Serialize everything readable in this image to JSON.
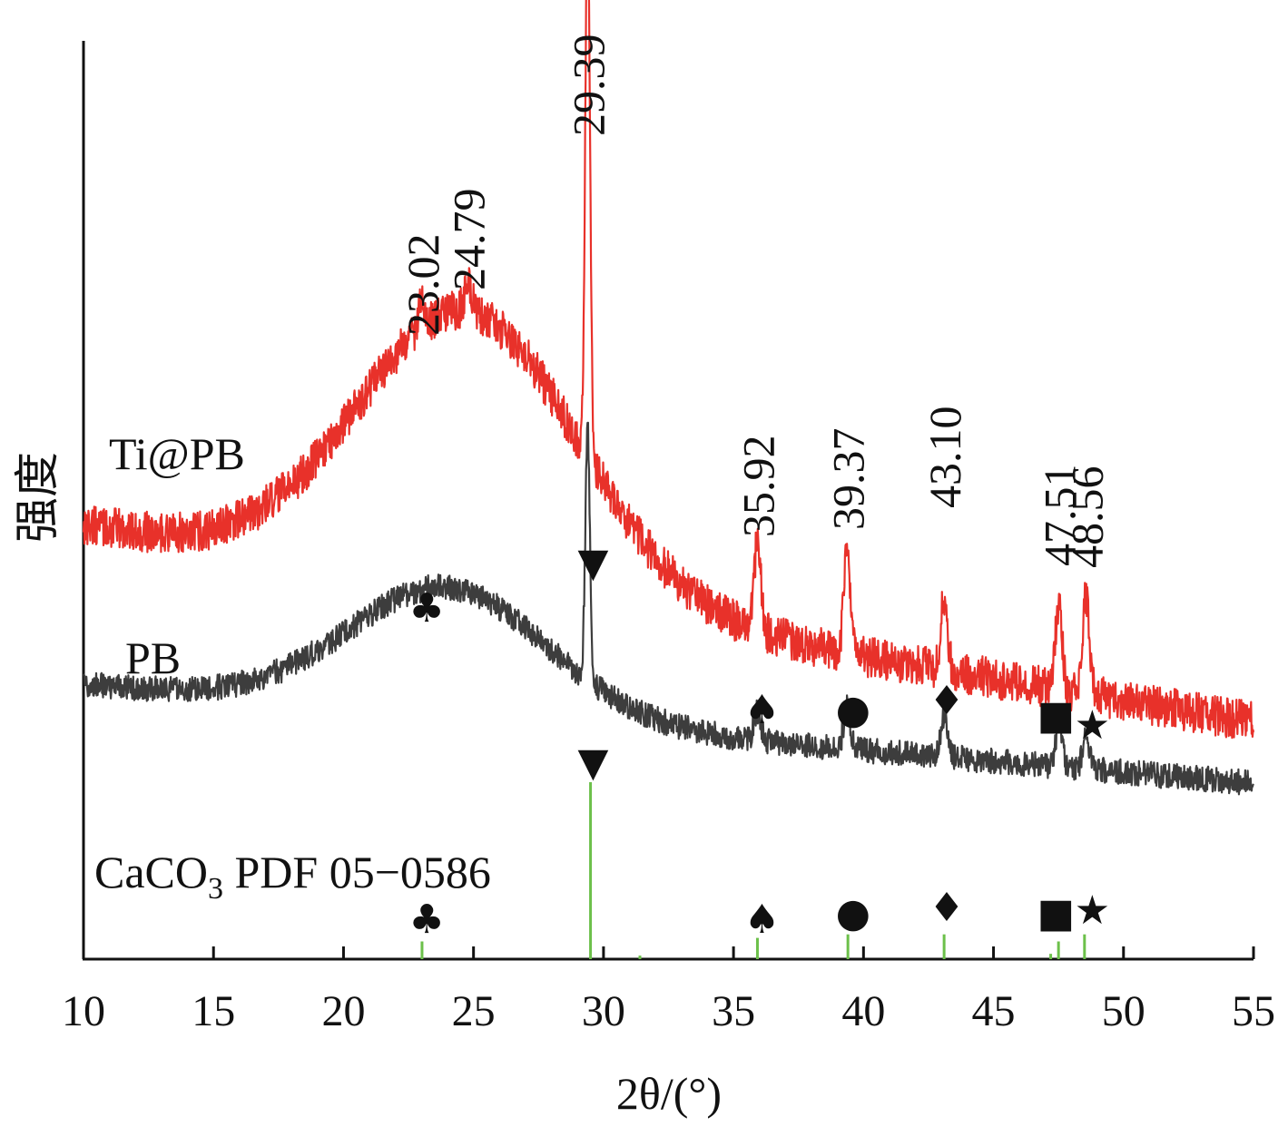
{
  "chart_data": {
    "type": "line",
    "title": "",
    "xlabel": "2θ/(°)",
    "ylabel": "强度",
    "xlim": [
      10,
      55
    ],
    "x_ticks": [
      "10",
      "15",
      "20",
      "25",
      "30",
      "35",
      "40",
      "45",
      "50",
      "55"
    ],
    "y_ticks": false,
    "grid": false,
    "series": [
      {
        "name": "Ti@PB",
        "color": "#e8312a",
        "profile": {
          "start_x": 10,
          "end_x": 55,
          "baseline_start": 0.44,
          "baseline_end": 0.1,
          "hump_center": 24.8,
          "hump_width": 4.2,
          "hump_height": 0.48,
          "noise": 0.035
        },
        "peaks": [
          {
            "x": 23.02,
            "label": "23.02",
            "height": 0.05
          },
          {
            "x": 24.79,
            "label": "24.79",
            "height": 0.05
          },
          {
            "x": 29.39,
            "label": "29.39",
            "height": 0.95
          },
          {
            "x": 35.92,
            "label": "35.92",
            "height": 0.15
          },
          {
            "x": 39.37,
            "label": "39.37",
            "height": 0.17
          },
          {
            "x": 43.1,
            "label": "43.10",
            "height": 0.13
          },
          {
            "x": 47.51,
            "label": "47.51",
            "height": 0.15
          },
          {
            "x": 48.56,
            "label": "48.56",
            "height": 0.17
          }
        ]
      },
      {
        "name": "PB",
        "color": "#3d3d3d",
        "profile": {
          "start_x": 10,
          "end_x": 55,
          "baseline_start": 0.22,
          "baseline_end": 0.05,
          "hump_center": 24.0,
          "hump_width": 3.8,
          "hump_height": 0.22,
          "noise": 0.022
        },
        "peaks": [
          {
            "x": 29.39,
            "height": 0.43
          },
          {
            "x": 35.92,
            "height": 0.05
          },
          {
            "x": 39.37,
            "height": 0.07
          },
          {
            "x": 43.1,
            "height": 0.07
          },
          {
            "x": 47.51,
            "height": 0.07
          },
          {
            "x": 48.56,
            "height": 0.06
          }
        ]
      }
    ],
    "reference": {
      "name": "CaCO3 PDF 05-0586",
      "name_main": "CaCO",
      "name_sub": "3",
      "name_rest": " PDF 05−0586",
      "color": "#6cc04a",
      "lines": [
        {
          "x": 23.02,
          "height": 0.1
        },
        {
          "x": 29.5,
          "height": 1.0
        },
        {
          "x": 31.4,
          "height": 0.02
        },
        {
          "x": 35.92,
          "height": 0.12
        },
        {
          "x": 39.4,
          "height": 0.14
        },
        {
          "x": 43.1,
          "height": 0.14
        },
        {
          "x": 47.2,
          "height": 0.03
        },
        {
          "x": 47.5,
          "height": 0.1
        },
        {
          "x": 48.5,
          "height": 0.14
        }
      ]
    },
    "markers": [
      {
        "symbol": "♣",
        "x": 23.2,
        "name": "club-marker"
      },
      {
        "symbol": "▼",
        "x": 29.6,
        "name": "triangle-down-marker"
      },
      {
        "symbol": "♠",
        "x": 36.1,
        "name": "spade-marker"
      },
      {
        "symbol": "●",
        "x": 39.6,
        "name": "circle-marker"
      },
      {
        "symbol": "♦",
        "x": 43.2,
        "name": "diamond-marker"
      },
      {
        "symbol": "■",
        "x": 47.4,
        "name": "square-marker"
      },
      {
        "symbol": "★",
        "x": 48.8,
        "name": "star-marker"
      }
    ]
  }
}
